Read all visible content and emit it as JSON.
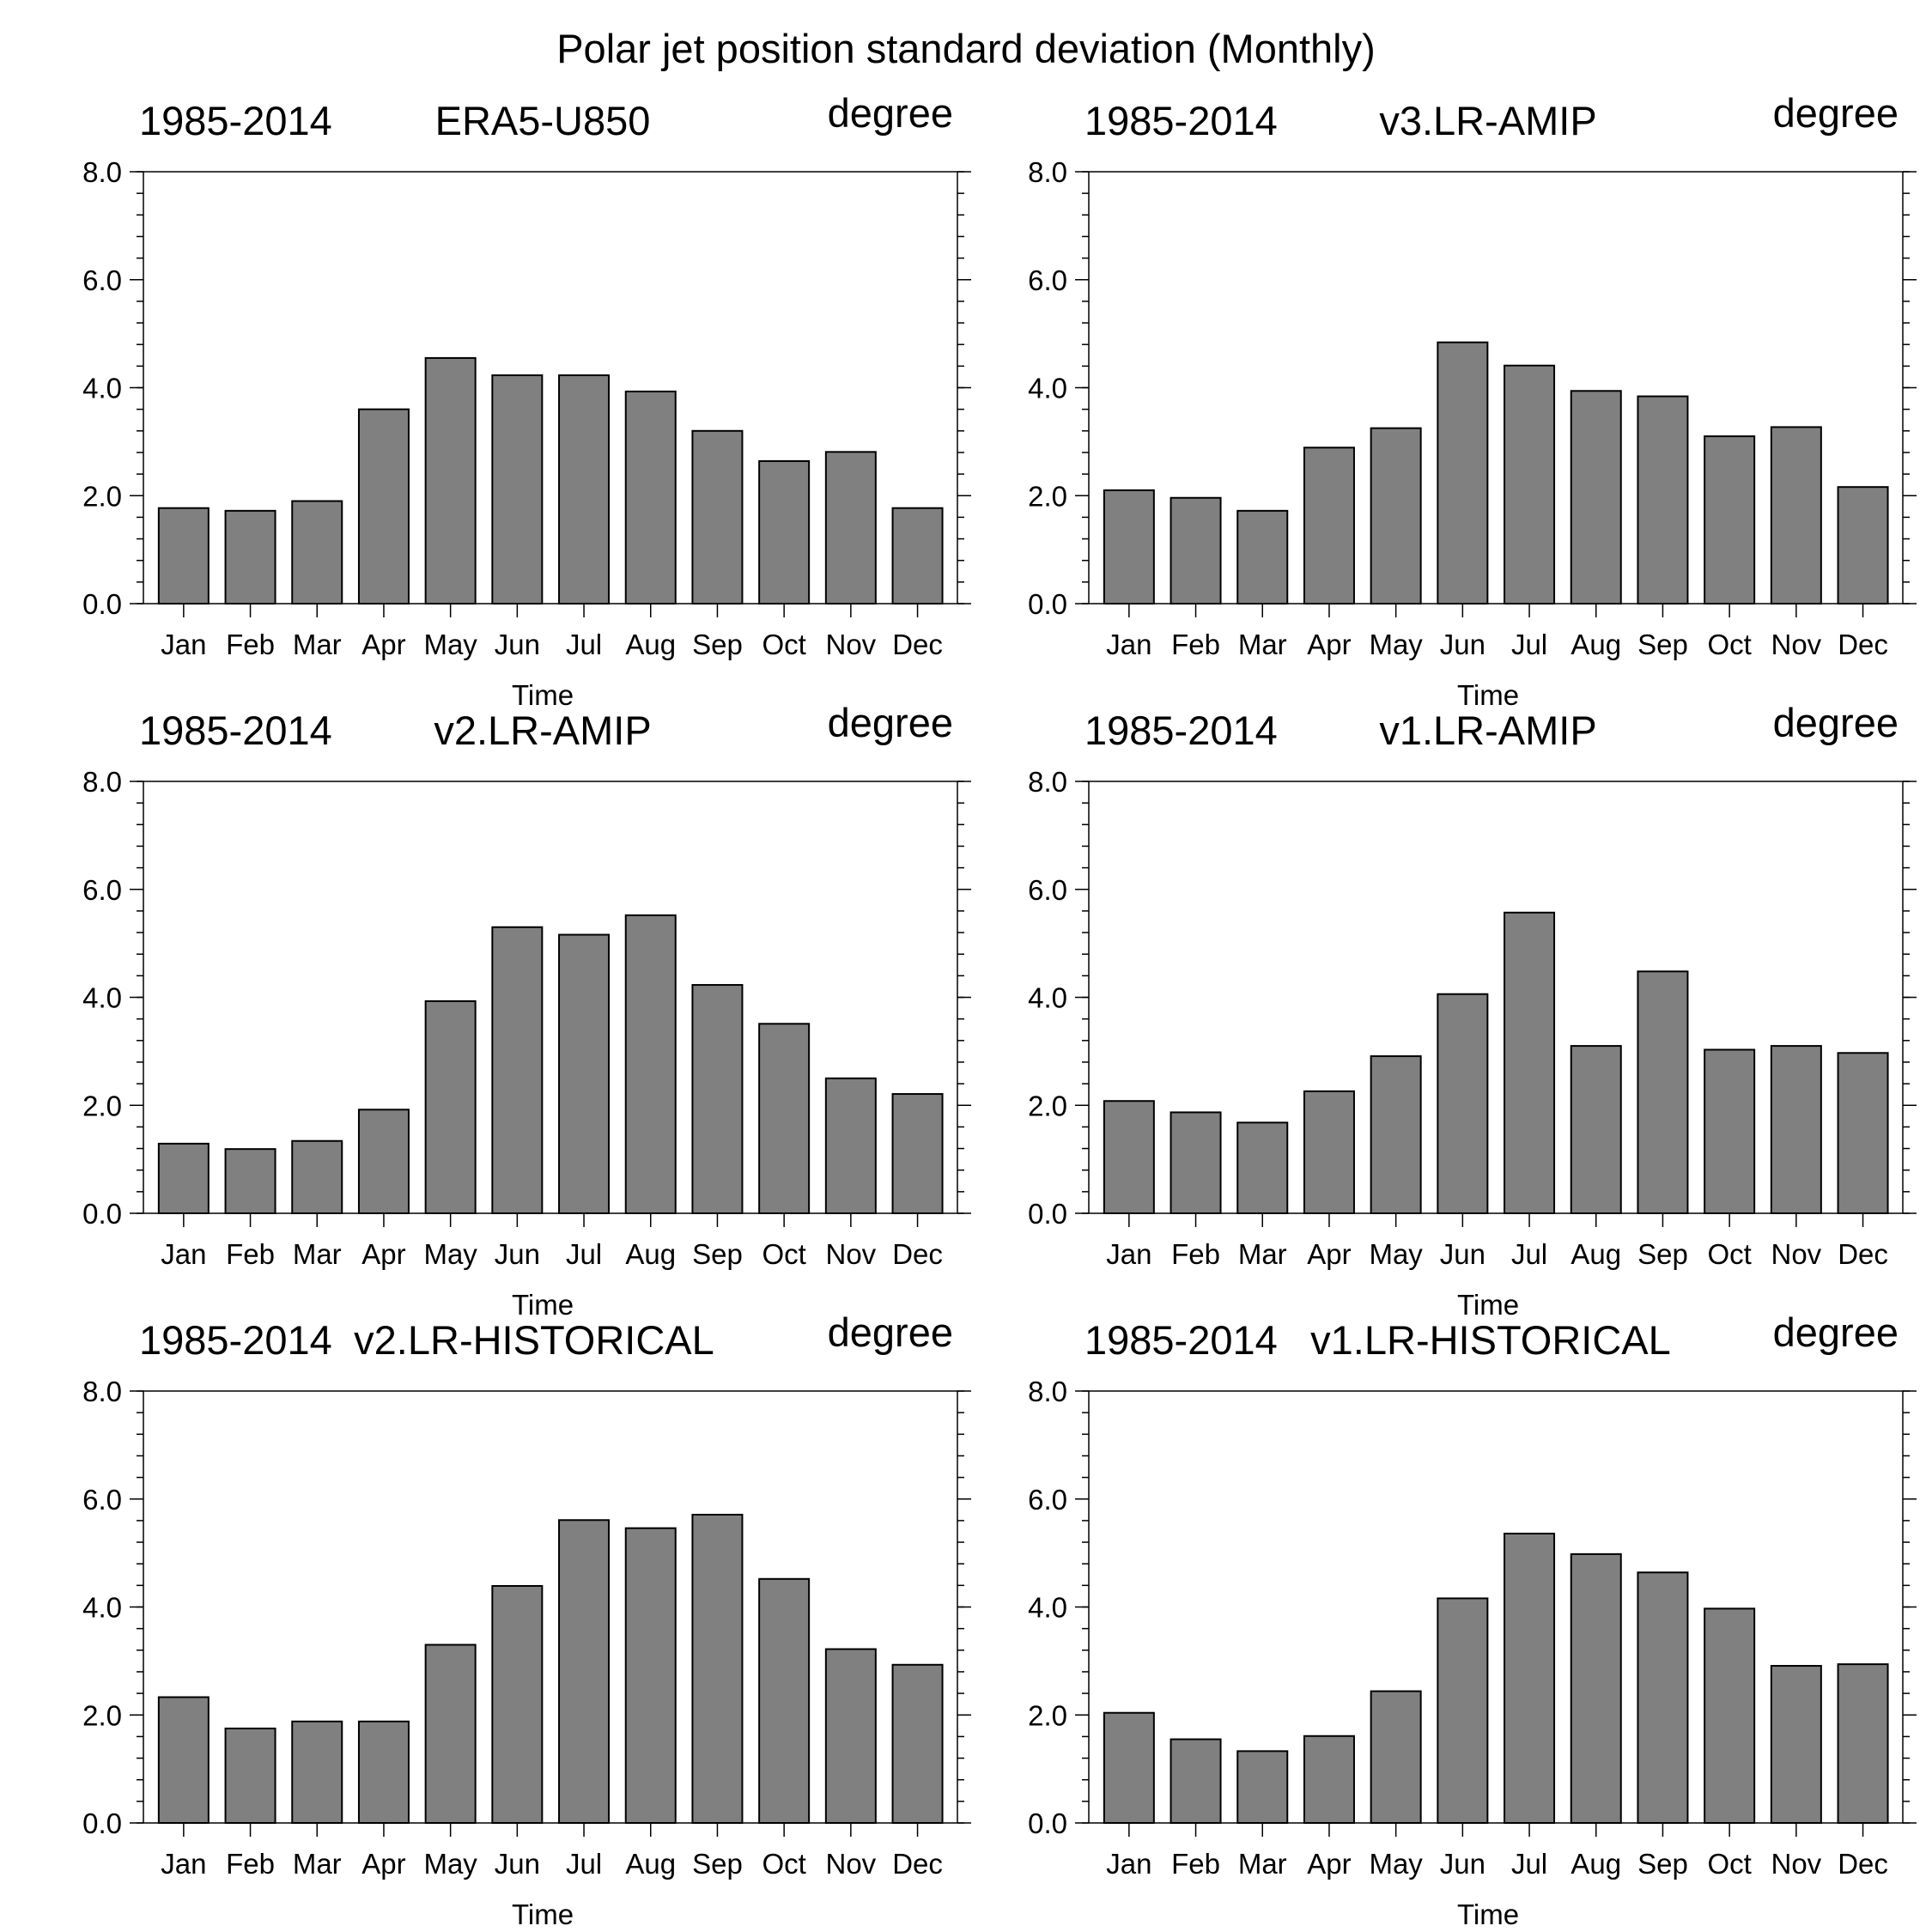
{
  "title": "Polar jet position standard deviation (Monthly)",
  "chart_data": [
    {
      "type": "bar",
      "left_label": "1985-2014",
      "title": "ERA5-U850",
      "right_label": "degree",
      "xlabel": "Time",
      "ylabel": "",
      "categories": [
        "Jan",
        "Feb",
        "Mar",
        "Apr",
        "May",
        "Jun",
        "Jul",
        "Aug",
        "Sep",
        "Oct",
        "Nov",
        "Dec"
      ],
      "values": [
        1.77,
        1.72,
        1.9,
        3.6,
        4.55,
        4.23,
        4.23,
        3.93,
        3.2,
        2.64,
        2.81,
        1.77
      ],
      "ylim": [
        0,
        8
      ],
      "yticks": [
        "0.0",
        "2.0",
        "4.0",
        "6.0",
        "8.0"
      ]
    },
    {
      "type": "bar",
      "left_label": "1985-2014",
      "title": "v3.LR-AMIP",
      "right_label": "degree",
      "xlabel": "Time",
      "ylabel": "",
      "categories": [
        "Jan",
        "Feb",
        "Mar",
        "Apr",
        "May",
        "Jun",
        "Jul",
        "Aug",
        "Sep",
        "Oct",
        "Nov",
        "Dec"
      ],
      "values": [
        2.1,
        1.96,
        1.72,
        2.89,
        3.25,
        4.84,
        4.41,
        3.94,
        3.84,
        3.1,
        3.27,
        2.16
      ],
      "ylim": [
        0,
        8
      ],
      "yticks": [
        "0.0",
        "2.0",
        "4.0",
        "6.0",
        "8.0"
      ]
    },
    {
      "type": "bar",
      "left_label": "1985-2014",
      "title": "v2.LR-AMIP",
      "right_label": "degree",
      "xlabel": "Time",
      "ylabel": "",
      "categories": [
        "Jan",
        "Feb",
        "Mar",
        "Apr",
        "May",
        "Jun",
        "Jul",
        "Aug",
        "Sep",
        "Oct",
        "Nov",
        "Dec"
      ],
      "values": [
        1.29,
        1.19,
        1.34,
        1.92,
        3.93,
        5.3,
        5.16,
        5.52,
        4.23,
        3.51,
        2.5,
        2.21
      ],
      "ylim": [
        0,
        8
      ],
      "yticks": [
        "0.0",
        "2.0",
        "4.0",
        "6.0",
        "8.0"
      ]
    },
    {
      "type": "bar",
      "left_label": "1985-2014",
      "title": "v1.LR-AMIP",
      "right_label": "degree",
      "xlabel": "Time",
      "ylabel": "",
      "categories": [
        "Jan",
        "Feb",
        "Mar",
        "Apr",
        "May",
        "Jun",
        "Jul",
        "Aug",
        "Sep",
        "Oct",
        "Nov",
        "Dec"
      ],
      "values": [
        2.08,
        1.87,
        1.68,
        2.26,
        2.91,
        4.06,
        5.57,
        3.1,
        4.48,
        3.03,
        3.1,
        2.97
      ],
      "ylim": [
        0,
        8
      ],
      "yticks": [
        "0.0",
        "2.0",
        "4.0",
        "6.0",
        "8.0"
      ]
    },
    {
      "type": "bar",
      "left_label": "1985-2014",
      "title": "v2.LR-HISTORICAL",
      "right_label": "degree",
      "xlabel": "Time",
      "ylabel": "",
      "categories": [
        "Jan",
        "Feb",
        "Mar",
        "Apr",
        "May",
        "Jun",
        "Jul",
        "Aug",
        "Sep",
        "Oct",
        "Nov",
        "Dec"
      ],
      "values": [
        2.33,
        1.75,
        1.88,
        1.88,
        3.3,
        4.39,
        5.61,
        5.46,
        5.71,
        4.52,
        3.22,
        2.93
      ],
      "ylim": [
        0,
        8
      ],
      "yticks": [
        "0.0",
        "2.0",
        "4.0",
        "6.0",
        "8.0"
      ]
    },
    {
      "type": "bar",
      "left_label": "1985-2014",
      "title": "v1.LR-HISTORICAL",
      "right_label": "degree",
      "xlabel": "Time",
      "ylabel": "",
      "categories": [
        "Jan",
        "Feb",
        "Mar",
        "Apr",
        "May",
        "Jun",
        "Jul",
        "Aug",
        "Sep",
        "Oct",
        "Nov",
        "Dec"
      ],
      "values": [
        2.04,
        1.55,
        1.33,
        1.61,
        2.44,
        4.16,
        5.36,
        4.98,
        4.64,
        3.97,
        2.91,
        2.94
      ],
      "ylim": [
        0,
        8
      ],
      "yticks": [
        "0.0",
        "2.0",
        "4.0",
        "6.0",
        "8.0"
      ]
    }
  ]
}
